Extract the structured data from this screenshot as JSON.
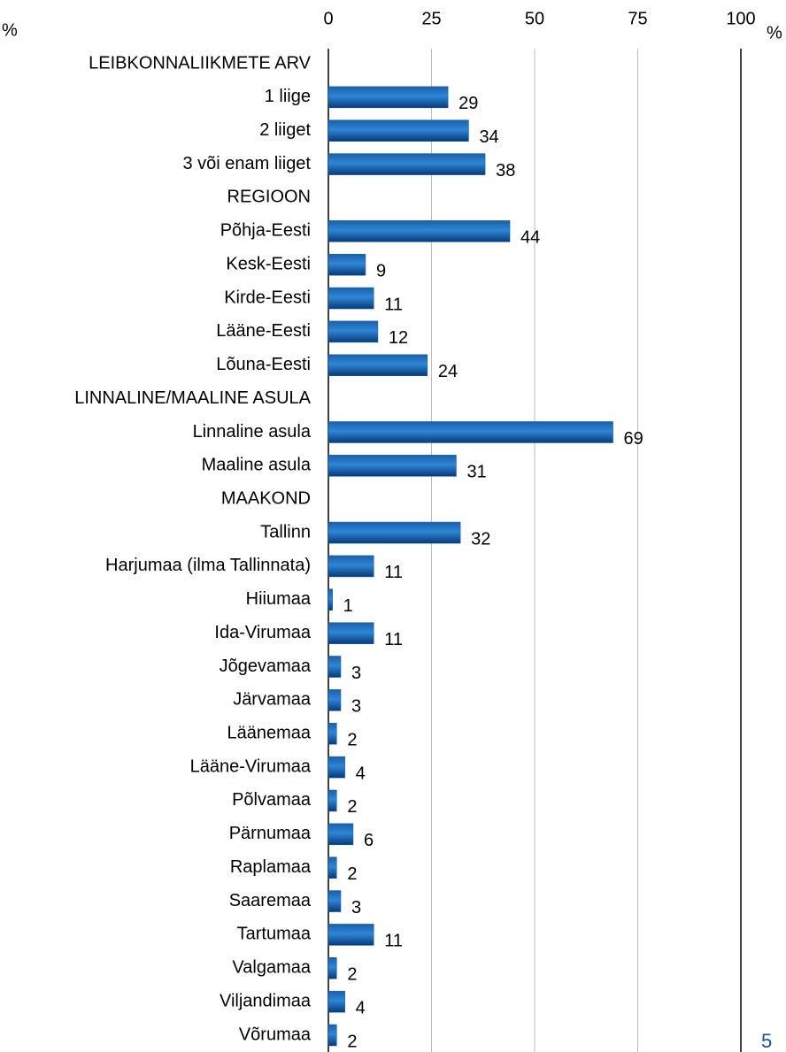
{
  "chart_data": {
    "type": "bar",
    "orientation": "horizontal",
    "unit": "%",
    "categories": [
      "LEIBKONNALIIKMETE ARV",
      "1 liige",
      "2 liiget",
      "3 või enam liiget",
      "REGIOON",
      "Põhja-Eesti",
      "Kesk-Eesti",
      "Kirde-Eesti",
      "Lääne-Eesti",
      "Lõuna-Eesti",
      "LINNALINE/MAALINE ASULA",
      "Linnaline asula",
      "Maaline asula",
      "MAAKOND",
      "Tallinn",
      "Harjumaa (ilma Tallinnata)",
      "Hiiumaa",
      "Ida-Virumaa",
      "Jõgevamaa",
      "Järvamaa",
      "Läänemaa",
      "Lääne-Virumaa",
      "Põlvamaa",
      "Pärnumaa",
      "Raplamaa",
      "Saaremaa",
      "Tartumaa",
      "Valgamaa",
      "Viljandimaa",
      "Võrumaa"
    ],
    "values": [
      null,
      29,
      34,
      38,
      null,
      44,
      9,
      11,
      12,
      24,
      null,
      69,
      31,
      null,
      32,
      11,
      1,
      11,
      3,
      3,
      2,
      4,
      2,
      6,
      2,
      3,
      11,
      2,
      4,
      2
    ],
    "color": "#0b5cb0",
    "xlim": [
      0,
      100
    ],
    "xticks": [
      0,
      25,
      50,
      75,
      100
    ],
    "grid": true
  },
  "page_number": "5"
}
